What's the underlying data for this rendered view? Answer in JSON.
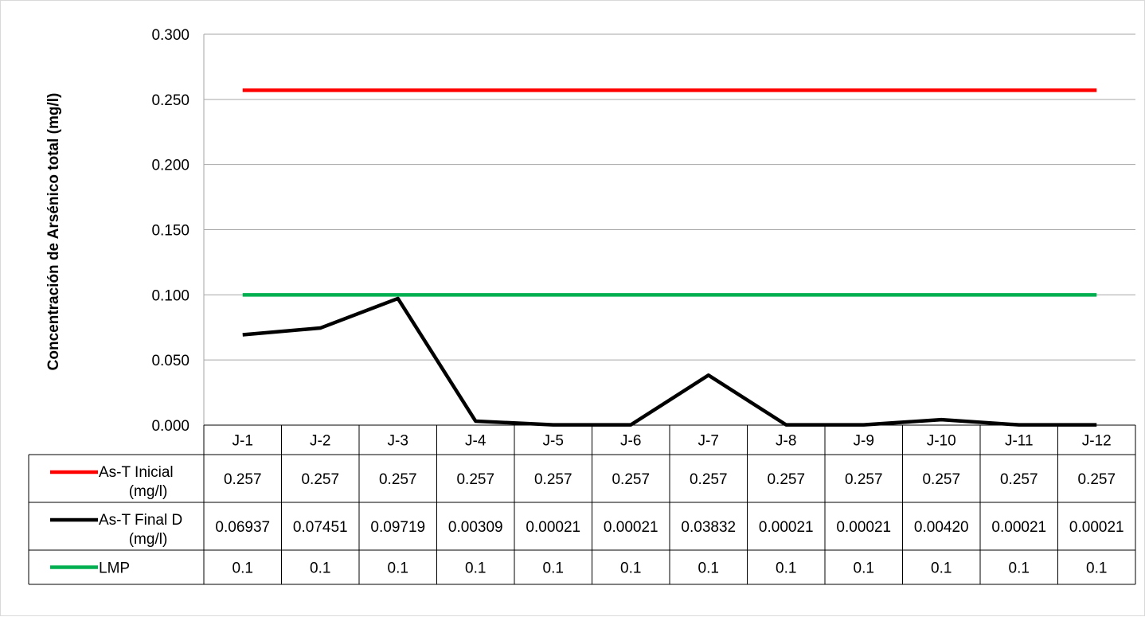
{
  "chart_data": {
    "type": "line",
    "ylabel": "Concentración de Arsénico total (mg/l)",
    "ylim": [
      0,
      0.3
    ],
    "yticks": [
      "0.000",
      "0.050",
      "0.100",
      "0.150",
      "0.200",
      "0.250",
      "0.300"
    ],
    "ytick_values": [
      0,
      0.05,
      0.1,
      0.15,
      0.2,
      0.25,
      0.3
    ],
    "grid": true,
    "categories": [
      "J-1",
      "J-2",
      "J-3",
      "J-4",
      "J-5",
      "J-6",
      "J-7",
      "J-8",
      "J-9",
      "J-10",
      "J-11",
      "J-12"
    ],
    "series": [
      {
        "name": "As-T Inicial (mg/l)",
        "name_lines": [
          "As-T Inicial",
          "(mg/l)"
        ],
        "color": "#ff0000",
        "values": [
          0.257,
          0.257,
          0.257,
          0.257,
          0.257,
          0.257,
          0.257,
          0.257,
          0.257,
          0.257,
          0.257,
          0.257
        ],
        "labels": [
          "0.257",
          "0.257",
          "0.257",
          "0.257",
          "0.257",
          "0.257",
          "0.257",
          "0.257",
          "0.257",
          "0.257",
          "0.257",
          "0.257"
        ]
      },
      {
        "name": "As-T Final D (mg/l)",
        "name_lines": [
          "As-T Final D",
          "(mg/l)"
        ],
        "color": "#000000",
        "values": [
          0.06937,
          0.07451,
          0.09719,
          0.00309,
          0.00021,
          0.00021,
          0.03832,
          0.00021,
          0.00021,
          0.0042,
          0.00021,
          0.00021
        ],
        "labels": [
          "0.06937",
          "0.07451",
          "0.09719",
          "0.00309",
          "0.00021",
          "0.00021",
          "0.03832",
          "0.00021",
          "0.00021",
          "0.00420",
          "0.00021",
          "0.00021"
        ]
      },
      {
        "name": "LMP",
        "name_lines": [
          "LMP"
        ],
        "color": "#00b050",
        "values": [
          0.1,
          0.1,
          0.1,
          0.1,
          0.1,
          0.1,
          0.1,
          0.1,
          0.1,
          0.1,
          0.1,
          0.1
        ],
        "labels": [
          "0.1",
          "0.1",
          "0.1",
          "0.1",
          "0.1",
          "0.1",
          "0.1",
          "0.1",
          "0.1",
          "0.1",
          "0.1",
          "0.1"
        ]
      }
    ],
    "legend": "data-table"
  }
}
